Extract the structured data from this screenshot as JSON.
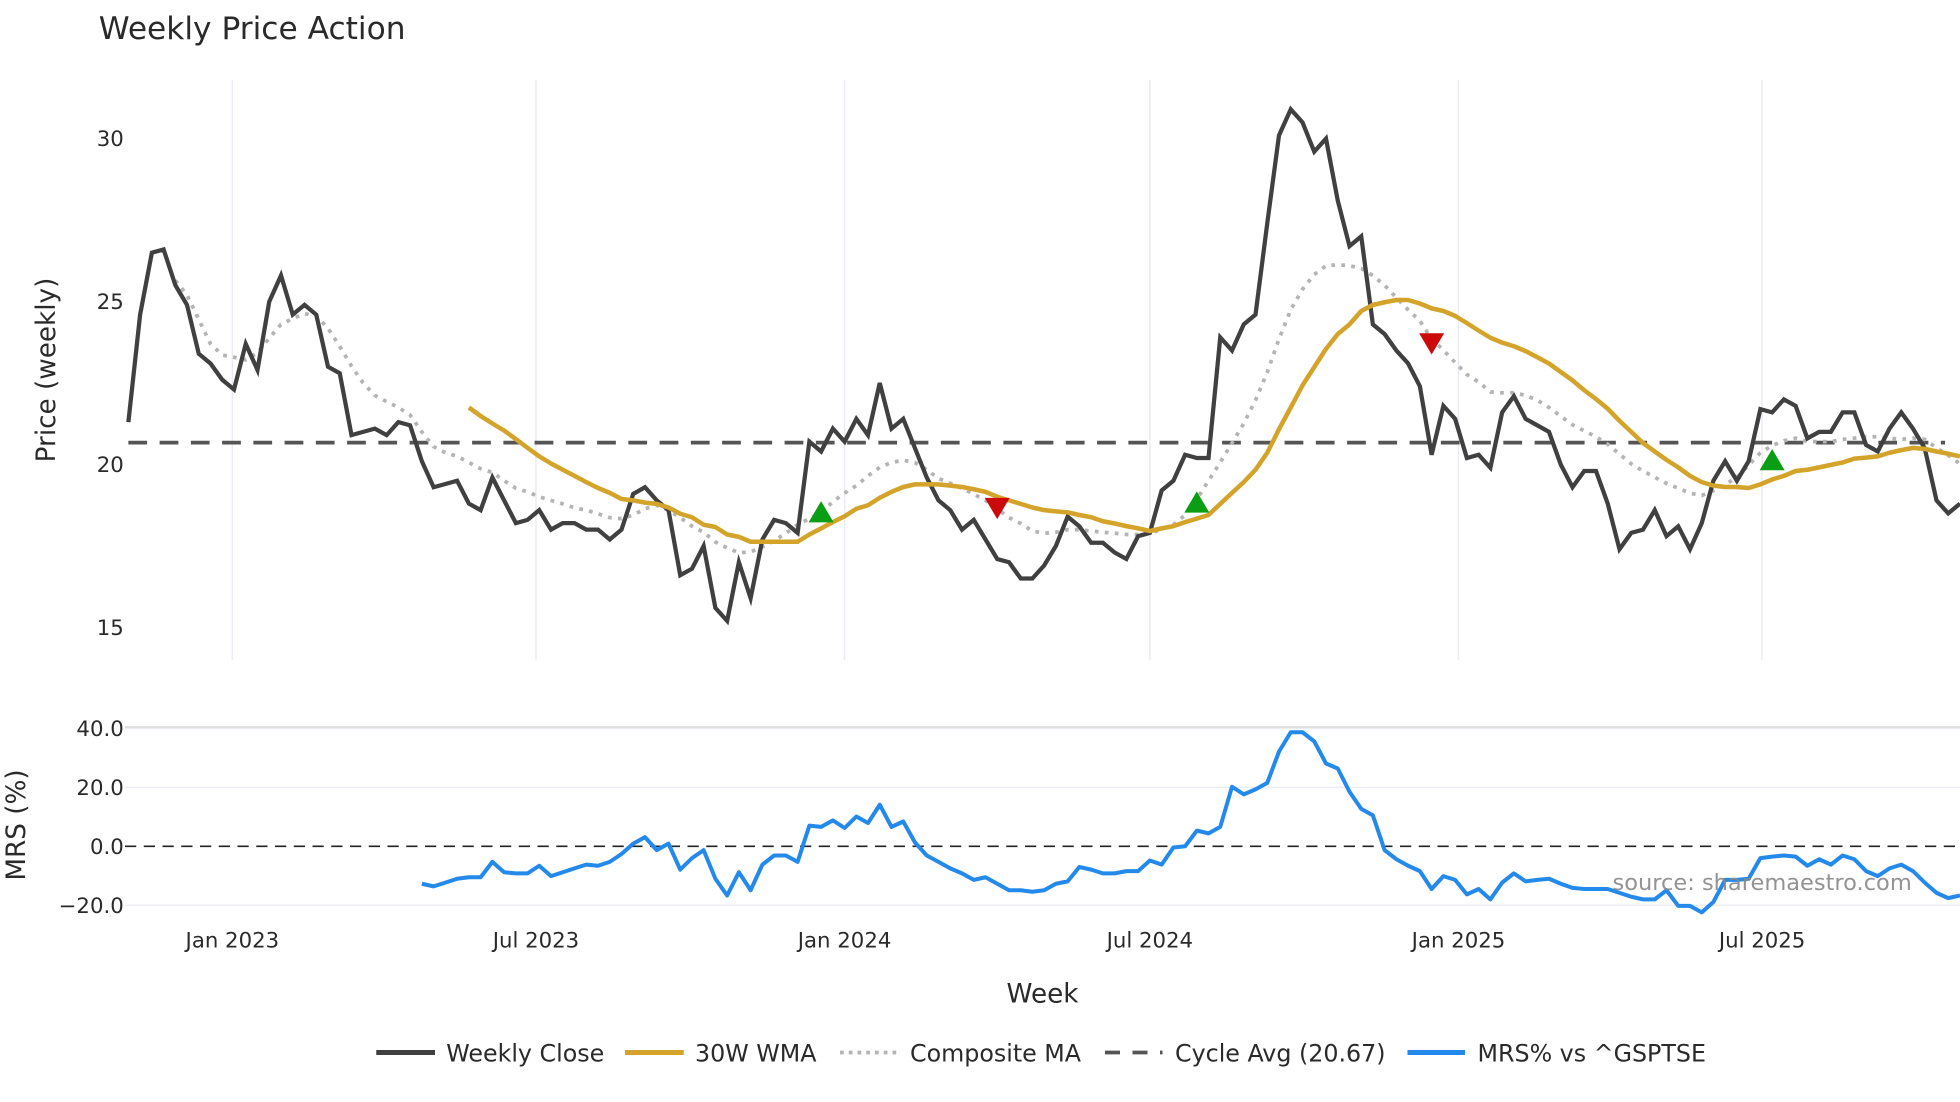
{
  "chart_data": [
    {
      "type": "line",
      "title": "Weekly Price Action",
      "xlabel": "",
      "ylabel": "Price (weekly)",
      "x_start_week": "2022-10-31",
      "xlim": [
        "2022-10-29",
        "2025-10-27"
      ],
      "ylim": [
        14.0,
        31.8
      ],
      "yticks": [
        15,
        20,
        25,
        30
      ],
      "ytick_labels": [
        "15",
        "20",
        "25",
        "30"
      ],
      "grid": true,
      "series": [
        {
          "name": "Weekly Close",
          "color": "#404040",
          "start_index": 0,
          "values": [
            21.3,
            24.6,
            26.5,
            26.6,
            25.5,
            24.9,
            23.4,
            23.1,
            22.6,
            22.3,
            23.7,
            22.9,
            25.0,
            25.8,
            24.6,
            24.9,
            24.6,
            23.0,
            22.8,
            20.9,
            21.0,
            21.1,
            20.9,
            21.3,
            21.2,
            20.1,
            19.3,
            19.4,
            19.5,
            18.8,
            18.6,
            19.6,
            18.9,
            18.2,
            18.3,
            18.6,
            18.0,
            18.2,
            18.2,
            18.0,
            18.0,
            17.7,
            18.0,
            19.1,
            19.3,
            18.9,
            18.6,
            16.6,
            16.8,
            17.5,
            15.6,
            15.2,
            17.0,
            15.9,
            17.7,
            18.3,
            18.2,
            17.9,
            20.7,
            20.4,
            21.1,
            20.7,
            21.4,
            20.9,
            22.5,
            21.1,
            21.4,
            20.5,
            19.6,
            18.9,
            18.6,
            18.0,
            18.3,
            17.7,
            17.1,
            17.0,
            16.5,
            16.5,
            16.9,
            17.5,
            18.4,
            18.1,
            17.6,
            17.6,
            17.3,
            17.1,
            17.8,
            17.9,
            19.2,
            19.5,
            20.3,
            20.2,
            20.2,
            23.9,
            23.5,
            24.3,
            24.6,
            27.4,
            30.1,
            30.9,
            30.5,
            29.6,
            30.0,
            28.1,
            26.7,
            27.0,
            24.3,
            24.0,
            23.5,
            23.1,
            22.4,
            20.3,
            21.8,
            21.4,
            20.2,
            20.3,
            19.9,
            21.6,
            22.1,
            21.4,
            21.2,
            21.0,
            20.0,
            19.3,
            19.8,
            19.8,
            18.8,
            17.4,
            17.9,
            18.0,
            18.6,
            17.8,
            18.1,
            17.4,
            18.2,
            19.5,
            20.1,
            19.5,
            20.1,
            21.7,
            21.6,
            22.0,
            21.8,
            20.8,
            21.0,
            21.0,
            21.6,
            21.6,
            20.6,
            20.4,
            21.1,
            21.6,
            21.1,
            20.5,
            18.9,
            18.5,
            18.8
          ]
        },
        {
          "name": "30W WMA",
          "color": "#d4a42a",
          "start_index": 29,
          "values": [
            21.75,
            21.49,
            21.26,
            21.04,
            20.78,
            20.51,
            20.25,
            20.03,
            19.84,
            19.65,
            19.46,
            19.28,
            19.13,
            18.94,
            18.9,
            18.83,
            18.79,
            18.68,
            18.49,
            18.38,
            18.15,
            18.08,
            17.85,
            17.78,
            17.63,
            17.63,
            17.63,
            17.63,
            17.63,
            17.85,
            18.04,
            18.23,
            18.41,
            18.64,
            18.75,
            18.98,
            19.16,
            19.31,
            19.39,
            19.39,
            19.39,
            19.35,
            19.31,
            19.24,
            19.16,
            19.01,
            18.9,
            18.79,
            18.68,
            18.6,
            18.56,
            18.53,
            18.45,
            18.38,
            18.26,
            18.19,
            18.11,
            18.04,
            17.96,
            18.04,
            18.11,
            18.23,
            18.34,
            18.45,
            18.79,
            19.13,
            19.46,
            19.84,
            20.36,
            21.08,
            21.75,
            22.43,
            22.99,
            23.55,
            24.0,
            24.3,
            24.71,
            24.9,
            24.98,
            25.05,
            25.05,
            24.94,
            24.79,
            24.71,
            24.56,
            24.34,
            24.11,
            23.89,
            23.74,
            23.63,
            23.48,
            23.29,
            23.1,
            22.84,
            22.58,
            22.28,
            22.01,
            21.71,
            21.34,
            21.0,
            20.66,
            20.4,
            20.14,
            19.91,
            19.65,
            19.46,
            19.35,
            19.31,
            19.31,
            19.28,
            19.39,
            19.54,
            19.65,
            19.8,
            19.84,
            19.91,
            19.99,
            20.06,
            20.18,
            20.21,
            20.25,
            20.36,
            20.44,
            20.51,
            20.48,
            20.4,
            20.33,
            20.25
          ]
        },
        {
          "name": "Composite MA",
          "color": "#b4b4b4",
          "start_index": 4,
          "values": [
            25.65,
            25.2,
            24.45,
            23.7,
            23.36,
            23.29,
            23.21,
            23.43,
            23.88,
            24.3,
            24.48,
            24.63,
            24.56,
            24.18,
            23.62,
            23.02,
            22.5,
            22.12,
            21.93,
            21.75,
            21.52,
            21.0,
            20.55,
            20.36,
            20.25,
            20.06,
            19.87,
            19.76,
            19.5,
            19.27,
            19.16,
            19.01,
            18.9,
            18.79,
            18.67,
            18.6,
            18.49,
            18.37,
            18.34,
            18.45,
            18.64,
            18.75,
            18.6,
            18.37,
            18.11,
            17.92,
            17.62,
            17.44,
            17.29,
            17.32,
            17.47,
            17.66,
            17.89,
            18.15,
            18.34,
            18.52,
            18.86,
            19.12,
            19.35,
            19.65,
            19.91,
            20.06,
            20.13,
            20.06,
            19.84,
            19.57,
            19.42,
            19.27,
            19.09,
            18.9,
            18.64,
            18.37,
            18.19,
            17.96,
            17.89,
            17.92,
            18.0,
            18.0,
            17.96,
            17.92,
            17.89,
            17.85,
            17.85,
            17.89,
            18.0,
            18.15,
            18.45,
            18.94,
            19.5,
            20.06,
            20.66,
            21.26,
            21.97,
            22.83,
            23.85,
            24.75,
            25.38,
            25.83,
            26.1,
            26.13,
            26.1,
            26.02,
            25.8,
            25.5,
            25.12,
            24.75,
            24.41,
            23.85,
            23.51,
            23.13,
            22.76,
            22.53,
            22.23,
            22.2,
            22.2,
            22.12,
            21.97,
            21.75,
            21.48,
            21.22,
            21.03,
            20.85,
            20.62,
            20.32,
            20.02,
            19.8,
            19.61,
            19.42,
            19.27,
            19.12,
            19.05,
            19.2,
            19.38,
            19.61,
            19.98,
            20.36,
            20.58,
            20.73,
            20.81,
            20.7,
            20.7,
            20.7,
            20.77,
            20.81,
            20.85,
            20.85,
            20.81,
            20.77,
            20.81,
            20.77,
            20.51,
            20.28,
            20.02
          ]
        }
      ],
      "cycle_avg": {
        "name": "Cycle Avg (20.67)",
        "value": 20.67,
        "color": "#555555"
      },
      "signals": [
        {
          "type": "buy",
          "index": 59,
          "price": 18.55,
          "color": "#0a9e14"
        },
        {
          "type": "sell",
          "index": 74,
          "price": 18.65,
          "color": "#cc0a0a"
        },
        {
          "type": "buy",
          "index": 91,
          "price": 18.85,
          "color": "#0a9e14"
        },
        {
          "type": "sell",
          "index": 111,
          "price": 23.7,
          "color": "#cc0a0a"
        },
        {
          "type": "buy",
          "index": 140,
          "price": 20.15,
          "color": "#0a9e14"
        }
      ]
    },
    {
      "type": "line",
      "title": "",
      "xlabel": "Week",
      "ylabel": "MRS (%)",
      "ylim": [
        -25.0,
        42.0
      ],
      "yticks": [
        -20,
        0,
        20,
        40
      ],
      "ytick_labels": [
        "−20.0",
        "0.0",
        "20.0",
        "40.0"
      ],
      "xticks": [
        "2023-01-01",
        "2023-07-01",
        "2024-01-01",
        "2024-07-01",
        "2025-01-01",
        "2025-07-01"
      ],
      "xtick_labels": [
        "Jan 2023",
        "Jul 2023",
        "Jan 2024",
        "Jul 2024",
        "Jan 2025",
        "Jul 2025"
      ],
      "zero_line": 0,
      "series": [
        {
          "name": "MRS% vs ^GSPTSE",
          "color": "#2389eb",
          "start_index": 25,
          "values": [
            -12.7,
            -13.6,
            -12.3,
            -11.0,
            -10.5,
            -10.5,
            -5.3,
            -8.8,
            -9.2,
            -9.2,
            -6.6,
            -10.1,
            -8.8,
            -7.5,
            -6.2,
            -6.6,
            -5.3,
            -2.6,
            0.9,
            3.1,
            -1.3,
            0.9,
            -7.9,
            -4.0,
            -1.3,
            -11.0,
            -16.7,
            -8.8,
            -14.9,
            -6.2,
            -3.1,
            -3.1,
            -5.3,
            7.0,
            6.6,
            8.8,
            6.2,
            10.1,
            7.9,
            14.1,
            6.6,
            8.4,
            1.3,
            -3.1,
            -5.3,
            -7.5,
            -9.2,
            -11.4,
            -10.5,
            -12.7,
            -14.9,
            -14.9,
            -15.4,
            -14.9,
            -12.7,
            -11.9,
            -7.0,
            -7.9,
            -9.2,
            -9.2,
            -8.4,
            -8.4,
            -4.8,
            -6.2,
            -0.4,
            0.0,
            5.3,
            4.4,
            6.6,
            20.2,
            17.6,
            19.3,
            21.5,
            32.1,
            38.7,
            38.7,
            35.6,
            28.1,
            26.4,
            18.5,
            12.7,
            10.5,
            -1.3,
            -4.4,
            -6.6,
            -8.4,
            -14.5,
            -10.1,
            -11.4,
            -16.3,
            -14.5,
            -18.0,
            -12.3,
            -9.2,
            -11.9,
            -11.4,
            -11.0,
            -12.7,
            -14.1,
            -14.5,
            -14.5,
            -14.5,
            -15.8,
            -17.1,
            -18.0,
            -18.0,
            -14.9,
            -20.2,
            -20.2,
            -22.4,
            -18.9,
            -11.4,
            -11.4,
            -11.0,
            -4.0,
            -3.5,
            -3.1,
            -3.5,
            -6.6,
            -4.4,
            -6.2,
            -3.1,
            -4.4,
            -8.4,
            -10.1,
            -7.5,
            -6.2,
            -8.4,
            -12.3,
            -15.8,
            -17.6,
            -16.7
          ]
        }
      ],
      "annotation": "source: sharemaestro.com"
    }
  ],
  "legend": {
    "placement": "bottom-center",
    "items": [
      {
        "label": "Weekly Close",
        "color": "#404040",
        "style": "solid"
      },
      {
        "label": "30W WMA",
        "color": "#d4a42a",
        "style": "solid"
      },
      {
        "label": "Composite MA",
        "color": "#b4b4b4",
        "style": "dot"
      },
      {
        "label": "Cycle Avg (20.67)",
        "color": "#555555",
        "style": "dash"
      },
      {
        "label": "MRS% vs ^GSPTSE",
        "color": "#2389eb",
        "style": "solid"
      }
    ]
  }
}
